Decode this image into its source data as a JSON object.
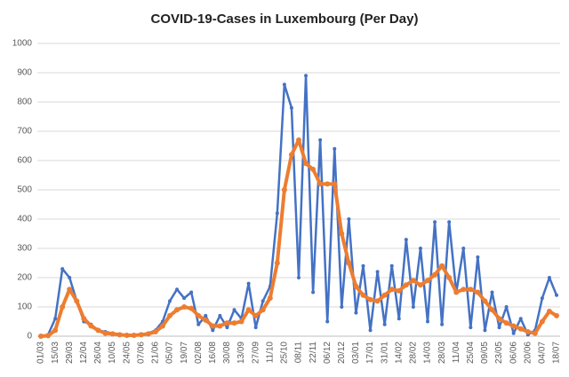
{
  "chart_data": {
    "type": "line",
    "title": "COVID-19-Cases in Luxembourg (Per Day)",
    "categories": [
      "01/03",
      null,
      "15/03",
      null,
      "29/03",
      null,
      "12/04",
      null,
      "26/04",
      null,
      "10/05",
      null,
      "24/05",
      null,
      "07/06",
      null,
      "21/06",
      null,
      "05/07",
      null,
      "19/07",
      null,
      "02/08",
      null,
      "16/08",
      null,
      "30/08",
      null,
      "13/09",
      null,
      "27/09",
      null,
      "11/10",
      null,
      "25/10",
      null,
      "08/11",
      null,
      "22/11",
      null,
      "06/12",
      null,
      "20/12",
      null,
      "03/01",
      null,
      "17/01",
      null,
      "31/01",
      null,
      "14/02",
      null,
      "28/02",
      null,
      "14/03",
      null,
      "28/03",
      null,
      "11/04",
      null,
      "25/04",
      null,
      "09/05",
      null,
      "23/05",
      null,
      "06/06",
      null,
      "20/06",
      null,
      "04/07",
      null,
      "18/07"
    ],
    "series": [
      {
        "color": "#4472c4",
        "values": [
          0,
          5,
          60,
          230,
          200,
          120,
          50,
          40,
          20,
          15,
          10,
          5,
          3,
          2,
          5,
          10,
          20,
          50,
          120,
          160,
          130,
          150,
          40,
          70,
          20,
          70,
          30,
          90,
          60,
          180,
          30,
          120,
          170,
          420,
          860,
          780,
          200,
          890,
          150,
          670,
          50,
          640,
          100,
          400,
          80,
          240,
          20,
          220,
          40,
          240,
          60,
          330,
          100,
          300,
          50,
          390,
          40,
          390,
          150,
          300,
          30,
          270,
          20,
          150,
          30,
          100,
          10,
          60,
          5,
          20,
          130,
          200,
          140
        ]
      },
      {
        "color": "#ed7d31",
        "values": [
          0,
          2,
          20,
          100,
          160,
          120,
          60,
          35,
          20,
          10,
          8,
          5,
          3,
          3,
          5,
          8,
          15,
          35,
          70,
          90,
          100,
          95,
          70,
          55,
          35,
          35,
          45,
          45,
          50,
          90,
          70,
          90,
          130,
          250,
          500,
          620,
          670,
          590,
          570,
          520,
          520,
          520,
          350,
          250,
          170,
          140,
          125,
          120,
          140,
          160,
          155,
          175,
          190,
          175,
          190,
          210,
          240,
          200,
          150,
          160,
          160,
          150,
          120,
          90,
          60,
          45,
          35,
          25,
          15,
          10,
          50,
          85,
          70
        ]
      }
    ],
    "ylim": [
      0,
      1000
    ],
    "yticks": [
      0,
      100,
      200,
      300,
      400,
      500,
      600,
      700,
      800,
      900,
      1000
    ],
    "grid": true
  }
}
